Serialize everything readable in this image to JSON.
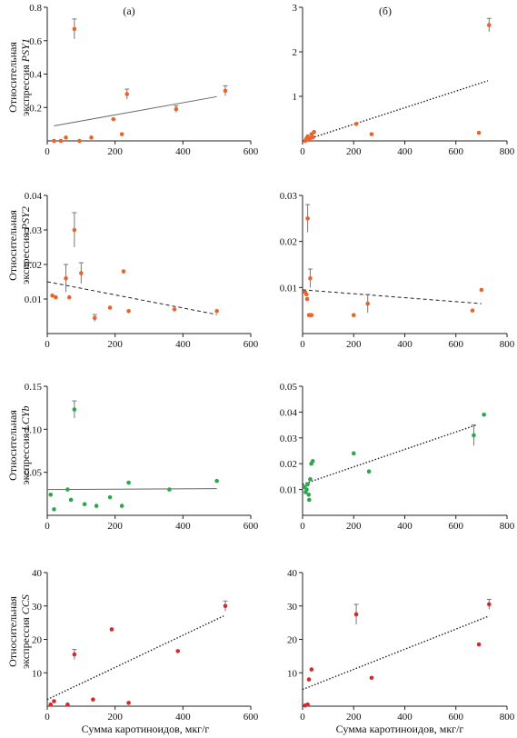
{
  "panel_labels": [
    "(а)",
    "(б)"
  ],
  "xlabel": "Сумма каротиноидов, мкг/г",
  "ylabel_prefix": "Относительная",
  "rows": [
    {
      "ylabel_line2": "экспрессия",
      "gene": "PSY1"
    },
    {
      "ylabel_line2": "экспрессия",
      "gene": "PSY2"
    },
    {
      "ylabel_line2": "экспрессия",
      "gene": "LCYb"
    },
    {
      "ylabel_line2": "экспрессия",
      "gene": "CCS"
    }
  ],
  "colors": {
    "orange": "#e8642a",
    "green": "#2aa84a",
    "red": "#d42a2a",
    "axis": "#222222",
    "errorbar": "#777777"
  },
  "chart_data": [
    {
      "type": "scatter",
      "panel": "a",
      "gene": "PSY1",
      "xlim": [
        0,
        600
      ],
      "ylim": [
        0,
        0.8
      ],
      "xticks": [
        0,
        200,
        400,
        600
      ],
      "yticks": [
        0.2,
        0.4,
        0.6,
        0.8
      ],
      "ytick_labels": [
        "0.2",
        "0.4",
        "0.6",
        "0.8"
      ],
      "color": "orange",
      "trend": {
        "x": [
          20,
          500
        ],
        "y": [
          0.09,
          0.265
        ],
        "style": "solid"
      },
      "points": [
        {
          "x": 20,
          "y": 0.0
        },
        {
          "x": 40,
          "y": 0.0
        },
        {
          "x": 55,
          "y": 0.02
        },
        {
          "x": 80,
          "y": 0.67,
          "err": 0.06
        },
        {
          "x": 95,
          "y": 0.0
        },
        {
          "x": 130,
          "y": 0.02
        },
        {
          "x": 195,
          "y": 0.13
        },
        {
          "x": 220,
          "y": 0.04
        },
        {
          "x": 235,
          "y": 0.28,
          "err": 0.03
        },
        {
          "x": 380,
          "y": 0.19,
          "err": 0.02
        },
        {
          "x": 525,
          "y": 0.3,
          "err": 0.03
        }
      ]
    },
    {
      "type": "scatter",
      "panel": "b",
      "gene": "PSY1",
      "xlim": [
        0,
        800
      ],
      "ylim": [
        0,
        3
      ],
      "xticks": [
        0,
        200,
        400,
        600,
        800
      ],
      "yticks": [
        1,
        2,
        3
      ],
      "ytick_labels": [
        "1",
        "2",
        "3"
      ],
      "color": "orange",
      "trend": {
        "x": [
          0,
          725
        ],
        "y": [
          0.0,
          1.35
        ],
        "style": "dotted"
      },
      "points": [
        {
          "x": 10,
          "y": 0.0
        },
        {
          "x": 15,
          "y": 0.05
        },
        {
          "x": 20,
          "y": 0.1
        },
        {
          "x": 25,
          "y": 0.02
        },
        {
          "x": 30,
          "y": 0.06
        },
        {
          "x": 35,
          "y": 0.15
        },
        {
          "x": 40,
          "y": 0.08
        },
        {
          "x": 45,
          "y": 0.2
        },
        {
          "x": 210,
          "y": 0.38
        },
        {
          "x": 270,
          "y": 0.15
        },
        {
          "x": 690,
          "y": 0.18
        },
        {
          "x": 730,
          "y": 2.6,
          "err": 0.15
        }
      ]
    },
    {
      "type": "scatter",
      "panel": "a",
      "gene": "PSY2",
      "xlim": [
        0,
        600
      ],
      "ylim": [
        0,
        0.04
      ],
      "xticks": [
        0,
        200,
        400,
        600
      ],
      "yticks": [
        0.01,
        0.02,
        0.03,
        0.04
      ],
      "ytick_labels": [
        "0.01",
        "0.02",
        "0.03",
        "0.04"
      ],
      "color": "orange",
      "trend": {
        "x": [
          0,
          500
        ],
        "y": [
          0.015,
          0.0055
        ],
        "style": "dashed"
      },
      "points": [
        {
          "x": 15,
          "y": 0.011
        },
        {
          "x": 25,
          "y": 0.0105
        },
        {
          "x": 55,
          "y": 0.016,
          "err": 0.004
        },
        {
          "x": 65,
          "y": 0.0105
        },
        {
          "x": 80,
          "y": 0.03,
          "err": 0.005
        },
        {
          "x": 100,
          "y": 0.0175,
          "err": 0.003
        },
        {
          "x": 140,
          "y": 0.0045,
          "err": 0.001
        },
        {
          "x": 185,
          "y": 0.0075
        },
        {
          "x": 225,
          "y": 0.018
        },
        {
          "x": 240,
          "y": 0.0065
        },
        {
          "x": 375,
          "y": 0.007
        },
        {
          "x": 500,
          "y": 0.0065
        }
      ]
    },
    {
      "type": "scatter",
      "panel": "b",
      "gene": "PSY2",
      "xlim": [
        0,
        800
      ],
      "ylim": [
        0,
        0.03
      ],
      "xticks": [
        0,
        200,
        400,
        600,
        800
      ],
      "yticks": [
        0.01,
        0.02,
        0.03
      ],
      "ytick_labels": [
        "0.01",
        "0.02",
        "0.03"
      ],
      "color": "orange",
      "trend": {
        "x": [
          0,
          700
        ],
        "y": [
          0.0095,
          0.0065
        ],
        "style": "dashed"
      },
      "points": [
        {
          "x": 10,
          "y": 0.009
        },
        {
          "x": 15,
          "y": 0.0085
        },
        {
          "x": 18,
          "y": 0.0075
        },
        {
          "x": 20,
          "y": 0.025,
          "err": 0.003
        },
        {
          "x": 25,
          "y": 0.004
        },
        {
          "x": 30,
          "y": 0.012,
          "err": 0.002
        },
        {
          "x": 35,
          "y": 0.004
        },
        {
          "x": 200,
          "y": 0.004
        },
        {
          "x": 255,
          "y": 0.0065,
          "err": 0.002
        },
        {
          "x": 665,
          "y": 0.005
        },
        {
          "x": 700,
          "y": 0.0095
        }
      ]
    },
    {
      "type": "scatter",
      "panel": "a",
      "gene": "LCYb",
      "xlim": [
        0,
        600
      ],
      "ylim": [
        0,
        0.15
      ],
      "xticks": [
        0,
        200,
        400,
        600
      ],
      "yticks": [
        0.05,
        0.1,
        0.15
      ],
      "ytick_labels": [
        "0.05",
        "0.10",
        "0.15"
      ],
      "color": "green",
      "trend": {
        "x": [
          0,
          500
        ],
        "y": [
          0.03,
          0.031
        ],
        "style": "solid"
      },
      "points": [
        {
          "x": 10,
          "y": 0.024
        },
        {
          "x": 20,
          "y": 0.007
        },
        {
          "x": 60,
          "y": 0.03
        },
        {
          "x": 70,
          "y": 0.018
        },
        {
          "x": 80,
          "y": 0.123,
          "err": 0.01
        },
        {
          "x": 110,
          "y": 0.013
        },
        {
          "x": 145,
          "y": 0.011
        },
        {
          "x": 185,
          "y": 0.021
        },
        {
          "x": 220,
          "y": 0.011
        },
        {
          "x": 240,
          "y": 0.038
        },
        {
          "x": 360,
          "y": 0.03
        },
        {
          "x": 500,
          "y": 0.04
        }
      ]
    },
    {
      "type": "scatter",
      "panel": "b",
      "gene": "LCYb",
      "xlim": [
        0,
        800
      ],
      "ylim": [
        0,
        0.05
      ],
      "xticks": [
        0,
        200,
        400,
        600,
        800
      ],
      "yticks": [
        0.01,
        0.02,
        0.03,
        0.04,
        0.05
      ],
      "ytick_labels": [
        "0.01",
        "0.02",
        "0.03",
        "0.04",
        "0.05"
      ],
      "color": "green",
      "trend": {
        "x": [
          0,
          680
        ],
        "y": [
          0.012,
          0.035
        ],
        "style": "dotted"
      },
      "points": [
        {
          "x": 8,
          "y": 0.011
        },
        {
          "x": 12,
          "y": 0.009
        },
        {
          "x": 16,
          "y": 0.01
        },
        {
          "x": 20,
          "y": 0.012
        },
        {
          "x": 24,
          "y": 0.008
        },
        {
          "x": 26,
          "y": 0.006
        },
        {
          "x": 30,
          "y": 0.014
        },
        {
          "x": 34,
          "y": 0.02
        },
        {
          "x": 40,
          "y": 0.021
        },
        {
          "x": 200,
          "y": 0.024
        },
        {
          "x": 260,
          "y": 0.017
        },
        {
          "x": 670,
          "y": 0.031,
          "err": 0.004
        },
        {
          "x": 710,
          "y": 0.039
        }
      ]
    },
    {
      "type": "scatter",
      "panel": "a",
      "gene": "CCS",
      "xlim": [
        0,
        600
      ],
      "ylim": [
        0,
        40
      ],
      "xticks": [
        0,
        200,
        400,
        600
      ],
      "yticks": [
        10,
        20,
        30,
        40
      ],
      "ytick_labels": [
        "10",
        "20",
        "30",
        "40"
      ],
      "color": "red",
      "trend": {
        "x": [
          0,
          520
        ],
        "y": [
          2,
          27
        ],
        "style": "dotted"
      },
      "points": [
        {
          "x": 10,
          "y": 0.5
        },
        {
          "x": 20,
          "y": 1.5
        },
        {
          "x": 60,
          "y": 0.5
        },
        {
          "x": 80,
          "y": 15.5,
          "err": 1.5
        },
        {
          "x": 135,
          "y": 2
        },
        {
          "x": 190,
          "y": 23
        },
        {
          "x": 240,
          "y": 1
        },
        {
          "x": 385,
          "y": 16.5
        },
        {
          "x": 525,
          "y": 30,
          "err": 1.5
        }
      ]
    },
    {
      "type": "scatter",
      "panel": "b",
      "gene": "CCS",
      "xlim": [
        0,
        800
      ],
      "ylim": [
        0,
        40
      ],
      "xticks": [
        0,
        200,
        400,
        600,
        800
      ],
      "yticks": [
        10,
        20,
        30,
        40
      ],
      "ytick_labels": [
        "10",
        "20",
        "30",
        "40"
      ],
      "color": "red",
      "trend": {
        "x": [
          0,
          730
        ],
        "y": [
          5,
          27
        ],
        "style": "dotted"
      },
      "points": [
        {
          "x": 10,
          "y": 0.2
        },
        {
          "x": 20,
          "y": 0.5
        },
        {
          "x": 25,
          "y": 8
        },
        {
          "x": 35,
          "y": 11
        },
        {
          "x": 210,
          "y": 27.5,
          "err": 3
        },
        {
          "x": 270,
          "y": 8.5
        },
        {
          "x": 690,
          "y": 18.5
        },
        {
          "x": 730,
          "y": 30.5,
          "err": 1.5
        }
      ]
    }
  ]
}
